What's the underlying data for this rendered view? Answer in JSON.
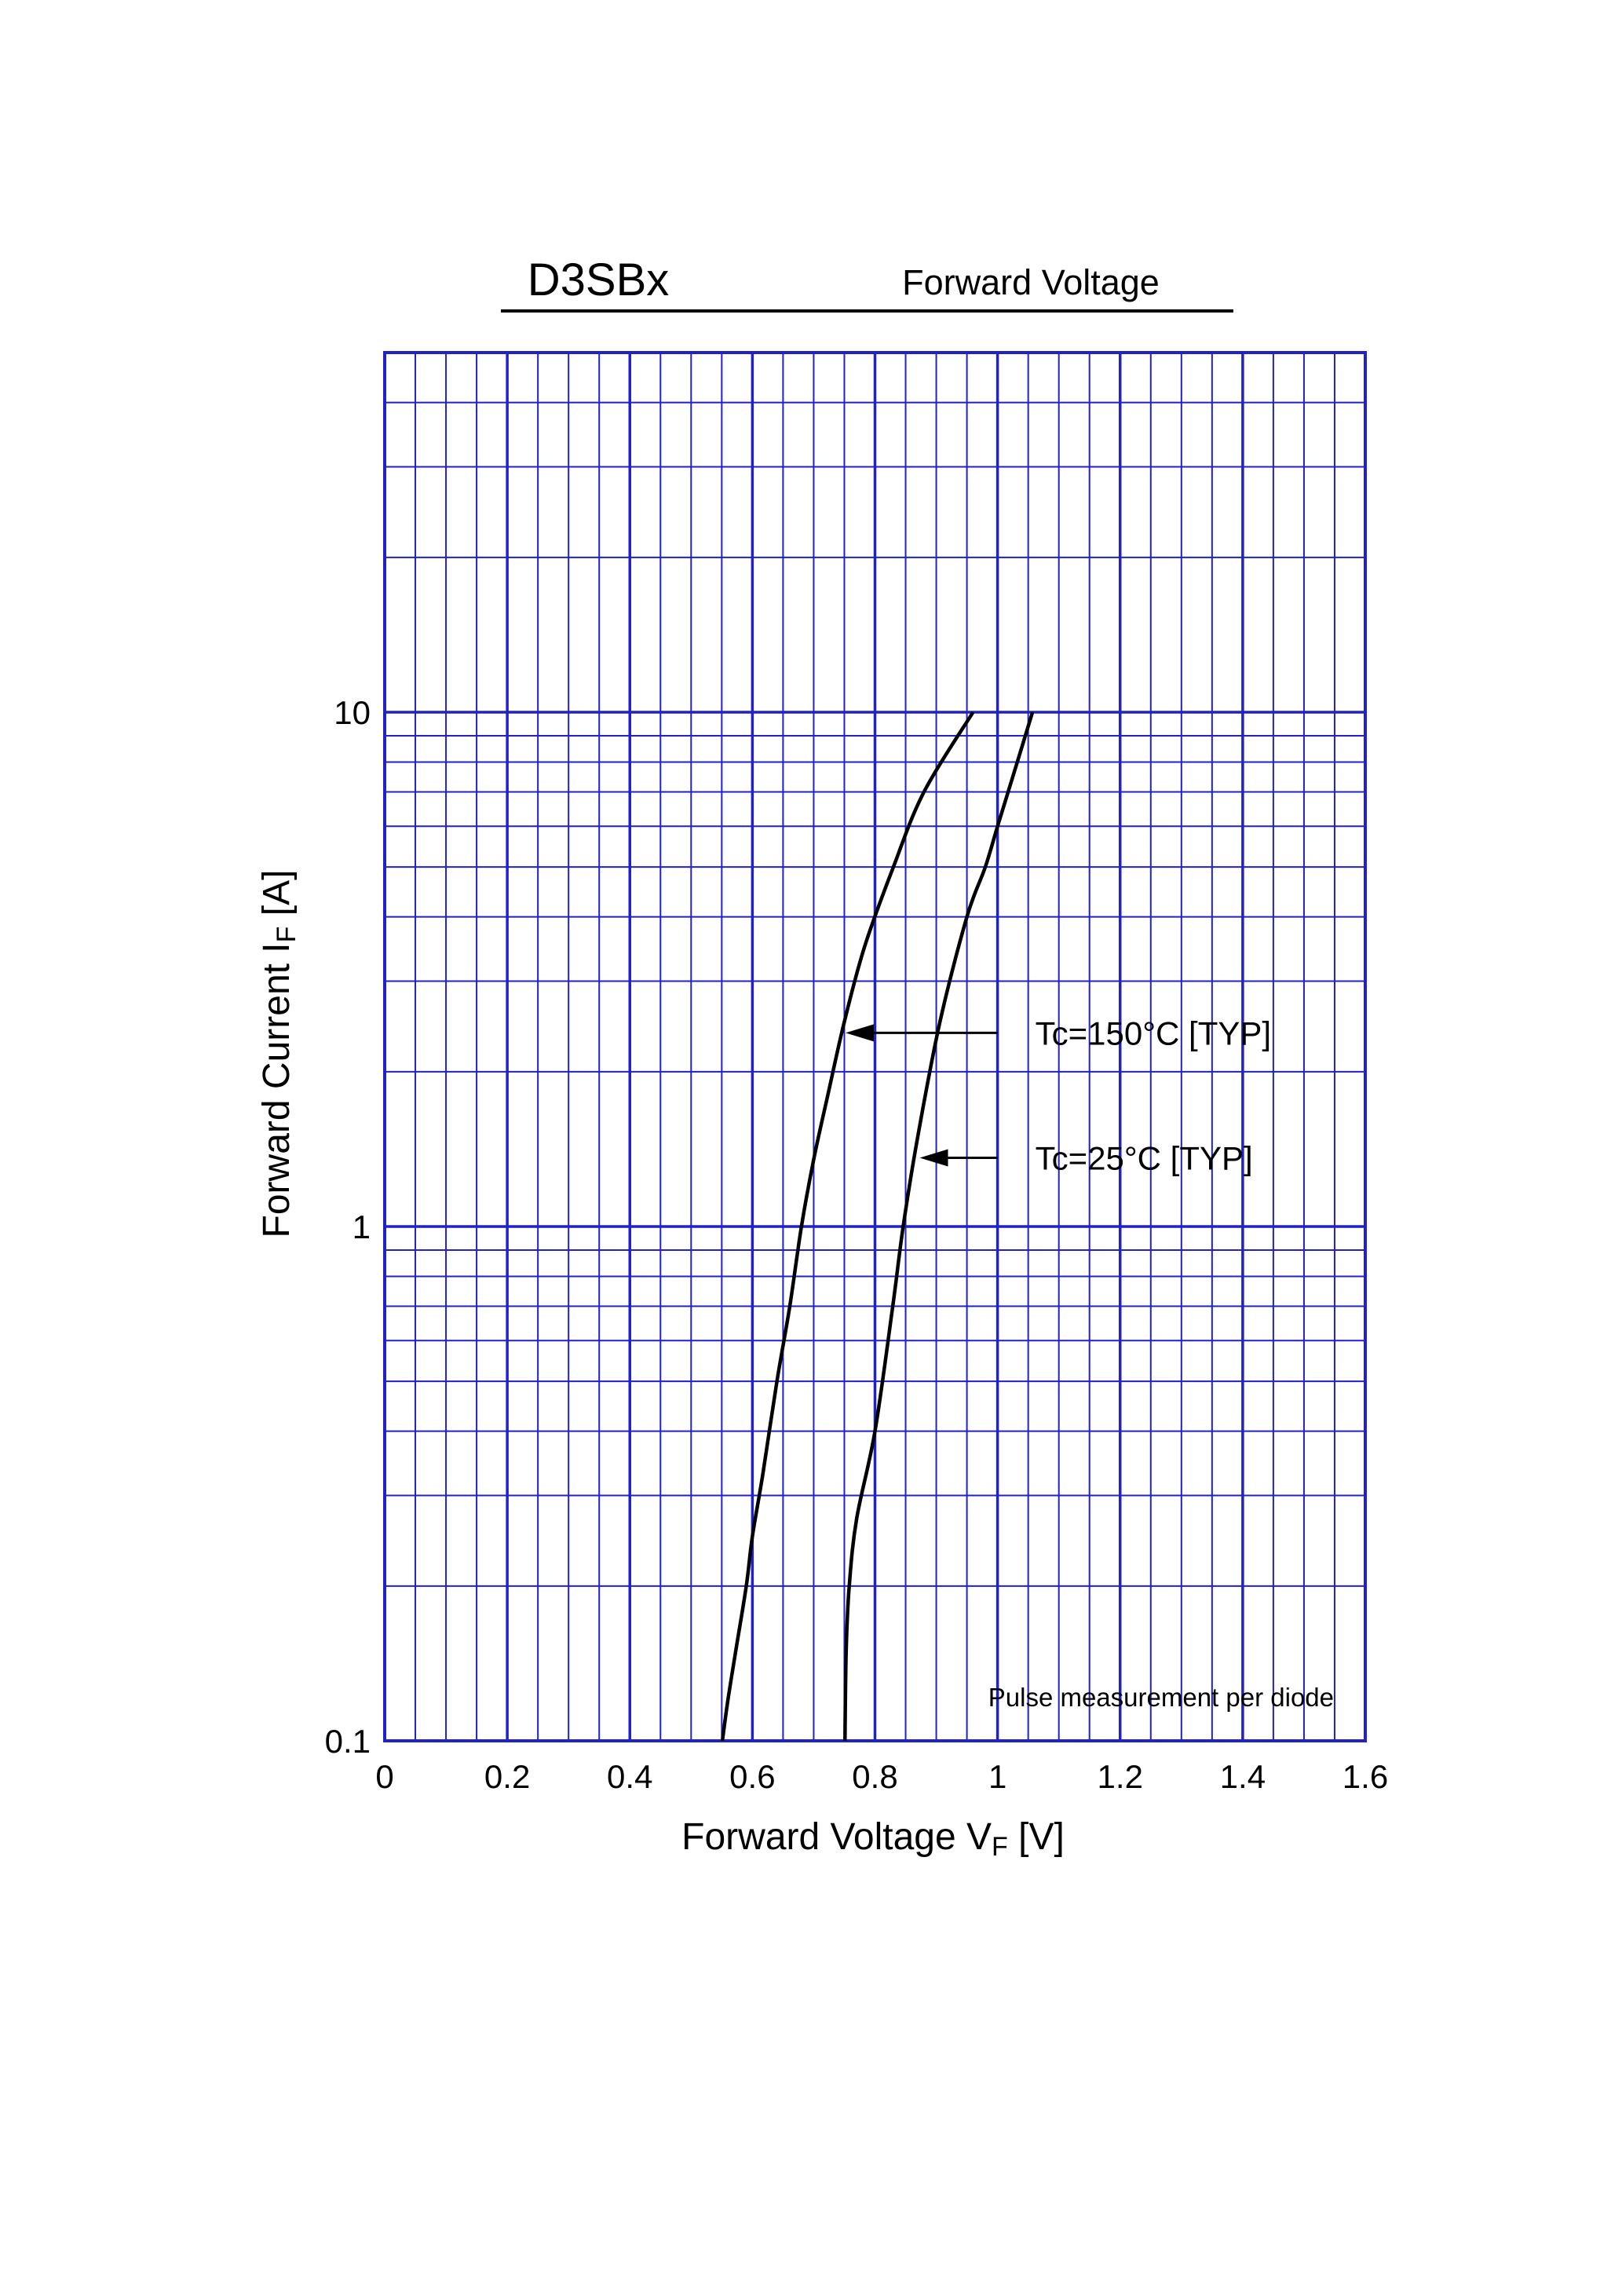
{
  "chart_data": {
    "type": "line",
    "title": "D3SBx",
    "subtitle": "Forward Voltage",
    "xlabel": {
      "main": "Forward Voltage  V",
      "sub": "F",
      "unit": "[V]"
    },
    "ylabel": {
      "main": "Forward Current  I",
      "sub": "F",
      "unit": "[A]"
    },
    "xlim": [
      0,
      1.6
    ],
    "ylim": [
      0.1,
      50
    ],
    "yscale": "log",
    "grid": true,
    "x_ticks": [
      {
        "value": 0,
        "label": "0"
      },
      {
        "value": 0.2,
        "label": "0.2"
      },
      {
        "value": 0.4,
        "label": "0.4"
      },
      {
        "value": 0.6,
        "label": "0.6"
      },
      {
        "value": 0.8,
        "label": "0.8"
      },
      {
        "value": 1.0,
        "label": "1"
      },
      {
        "value": 1.2,
        "label": "1.2"
      },
      {
        "value": 1.4,
        "label": "1.4"
      },
      {
        "value": 1.6,
        "label": "1.6"
      }
    ],
    "y_ticks": [
      {
        "value": 0.1,
        "label": "0.1"
      },
      {
        "value": 1,
        "label": "1"
      },
      {
        "value": 10,
        "label": "10"
      }
    ],
    "series": [
      {
        "name": "Tc=150°C [TYP]",
        "points": [
          [
            0.551,
            0.1
          ],
          [
            0.56,
            0.12
          ],
          [
            0.573,
            0.15
          ],
          [
            0.59,
            0.2
          ],
          [
            0.6,
            0.25
          ],
          [
            0.617,
            0.33
          ],
          [
            0.64,
            0.5
          ],
          [
            0.661,
            0.7
          ],
          [
            0.68,
            1.0
          ],
          [
            0.7,
            1.35
          ],
          [
            0.723,
            1.8
          ],
          [
            0.75,
            2.5
          ],
          [
            0.783,
            3.5
          ],
          [
            0.83,
            5.0
          ],
          [
            0.88,
            7.0
          ],
          [
            0.96,
            10.0
          ]
        ]
      },
      {
        "name": "Tc=25°C [TYP]",
        "points": [
          [
            0.751,
            0.1
          ],
          [
            0.753,
            0.15
          ],
          [
            0.758,
            0.2
          ],
          [
            0.77,
            0.27
          ],
          [
            0.8,
            0.4
          ],
          [
            0.829,
            0.7
          ],
          [
            0.846,
            1.0
          ],
          [
            0.87,
            1.5
          ],
          [
            0.906,
            2.5
          ],
          [
            0.95,
            4.0
          ],
          [
            0.98,
            5.0
          ],
          [
            1.0,
            6.0
          ],
          [
            1.025,
            7.5
          ],
          [
            1.057,
            10.0
          ]
        ]
      }
    ],
    "annotations": [
      {
        "series": 0,
        "text": "Tc=150°C [TYP]",
        "arrow_from": [
          1.0,
          2.38
        ],
        "arrow_to": [
          0.752,
          2.38
        ]
      },
      {
        "series": 1,
        "text": "Tc=25°C [TYP]",
        "arrow_from": [
          1.0,
          1.36
        ],
        "arrow_to": [
          0.873,
          1.36
        ]
      }
    ],
    "note": "Pulse measurement per diode",
    "colors": {
      "grid": "#2121c8",
      "curve": "#000000"
    }
  }
}
